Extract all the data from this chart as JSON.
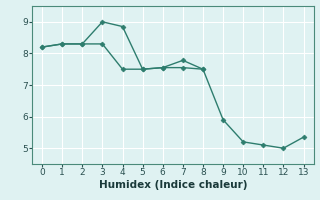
{
  "line1_x": [
    0,
    1,
    2,
    3,
    4,
    5,
    6,
    7,
    8
  ],
  "line1_y": [
    8.2,
    8.3,
    8.3,
    9.0,
    8.85,
    7.5,
    7.55,
    7.78,
    7.5
  ],
  "line2_x": [
    0,
    1,
    2,
    3,
    4,
    5,
    6,
    7,
    8,
    9,
    10,
    11,
    12,
    13
  ],
  "line2_y": [
    8.2,
    8.3,
    8.3,
    8.3,
    7.5,
    7.5,
    7.55,
    7.55,
    7.5,
    5.9,
    5.2,
    5.1,
    5.0,
    5.35
  ],
  "line_color": "#2e7d6e",
  "bg_color": "#dff2f2",
  "grid_color": "#ffffff",
  "xlabel": "Humidex (Indice chaleur)",
  "xlim": [
    -0.5,
    13.5
  ],
  "ylim": [
    4.5,
    9.5
  ],
  "xticks": [
    0,
    1,
    2,
    3,
    4,
    5,
    6,
    7,
    8,
    9,
    10,
    11,
    12,
    13
  ],
  "yticks": [
    5,
    6,
    7,
    8,
    9
  ],
  "marker": "D",
  "markersize": 2.5,
  "linewidth": 1.0,
  "xlabel_fontsize": 7.5,
  "tick_fontsize": 6.5
}
